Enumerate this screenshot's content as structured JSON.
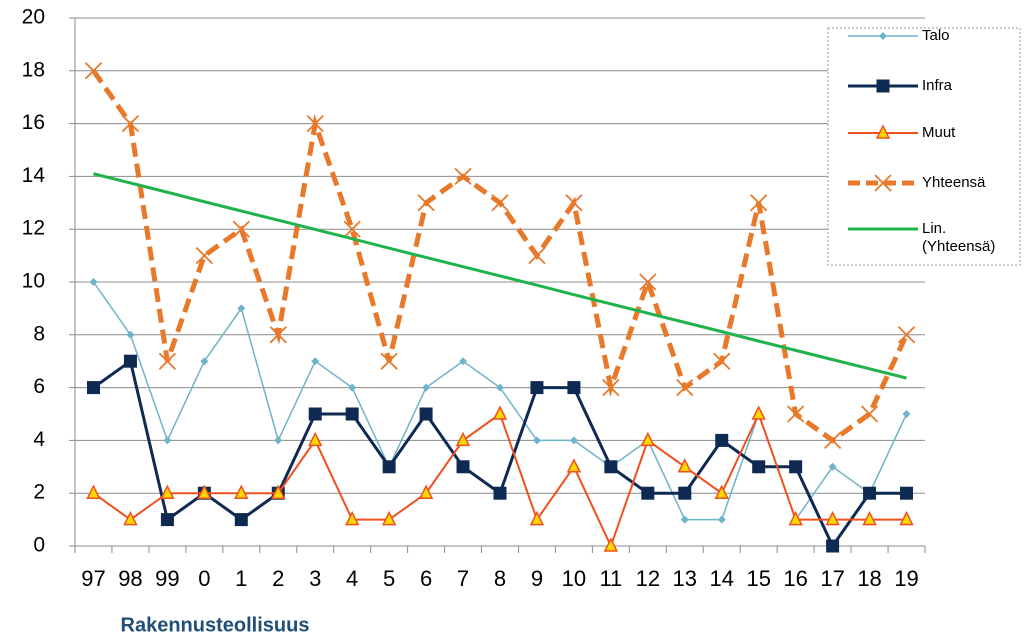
{
  "chart_data": {
    "type": "line",
    "x_label": "Rakennusteollisuus",
    "categories": [
      "97",
      "98",
      "99",
      "0",
      "1",
      "2",
      "3",
      "4",
      "5",
      "6",
      "7",
      "8",
      "9",
      "10",
      "11",
      "12",
      "13",
      "14",
      "15",
      "16",
      "17",
      "18",
      "19"
    ],
    "series": [
      {
        "name": "Talo",
        "color": "#6fb3c8",
        "values": [
          10,
          8,
          4,
          7,
          9,
          4,
          7,
          6,
          3,
          6,
          7,
          6,
          4,
          4,
          3,
          4,
          1,
          1,
          5,
          1,
          3,
          2,
          5
        ]
      },
      {
        "name": "Infra",
        "color": "#0e2a52",
        "values": [
          6,
          7,
          1,
          2,
          1,
          2,
          5,
          5,
          3,
          5,
          3,
          2,
          6,
          6,
          3,
          2,
          2,
          4,
          3,
          3,
          0,
          2,
          2
        ]
      },
      {
        "name": "Muut",
        "color": "#f0501e",
        "values": [
          2,
          1,
          2,
          2,
          2,
          2,
          4,
          1,
          1,
          2,
          4,
          5,
          1,
          3,
          0,
          4,
          3,
          2,
          5,
          1,
          1,
          1,
          1
        ]
      },
      {
        "name": "Yhteensä",
        "color": "#e8782a",
        "values": [
          18,
          16,
          7,
          11,
          12,
          8,
          16,
          12,
          7,
          13,
          14,
          13,
          11,
          13,
          6,
          10,
          6,
          7,
          13,
          5,
          4,
          5,
          8
        ]
      },
      {
        "name": "Lin. (Yhteensä)",
        "color": "#21b34b",
        "values": [
          14.1,
          13.75,
          13.4,
          13.04,
          12.69,
          12.34,
          11.99,
          11.64,
          11.28,
          10.93,
          10.58,
          10.23,
          9.88,
          9.52,
          9.17,
          8.82,
          8.47,
          8.12,
          7.76,
          7.41,
          7.06,
          6.71,
          6.36
        ]
      }
    ],
    "ylim": [
      0,
      20
    ],
    "yticks": [
      0,
      2,
      4,
      6,
      8,
      10,
      12,
      14,
      16,
      18,
      20
    ],
    "grid": true,
    "legend": "right"
  }
}
